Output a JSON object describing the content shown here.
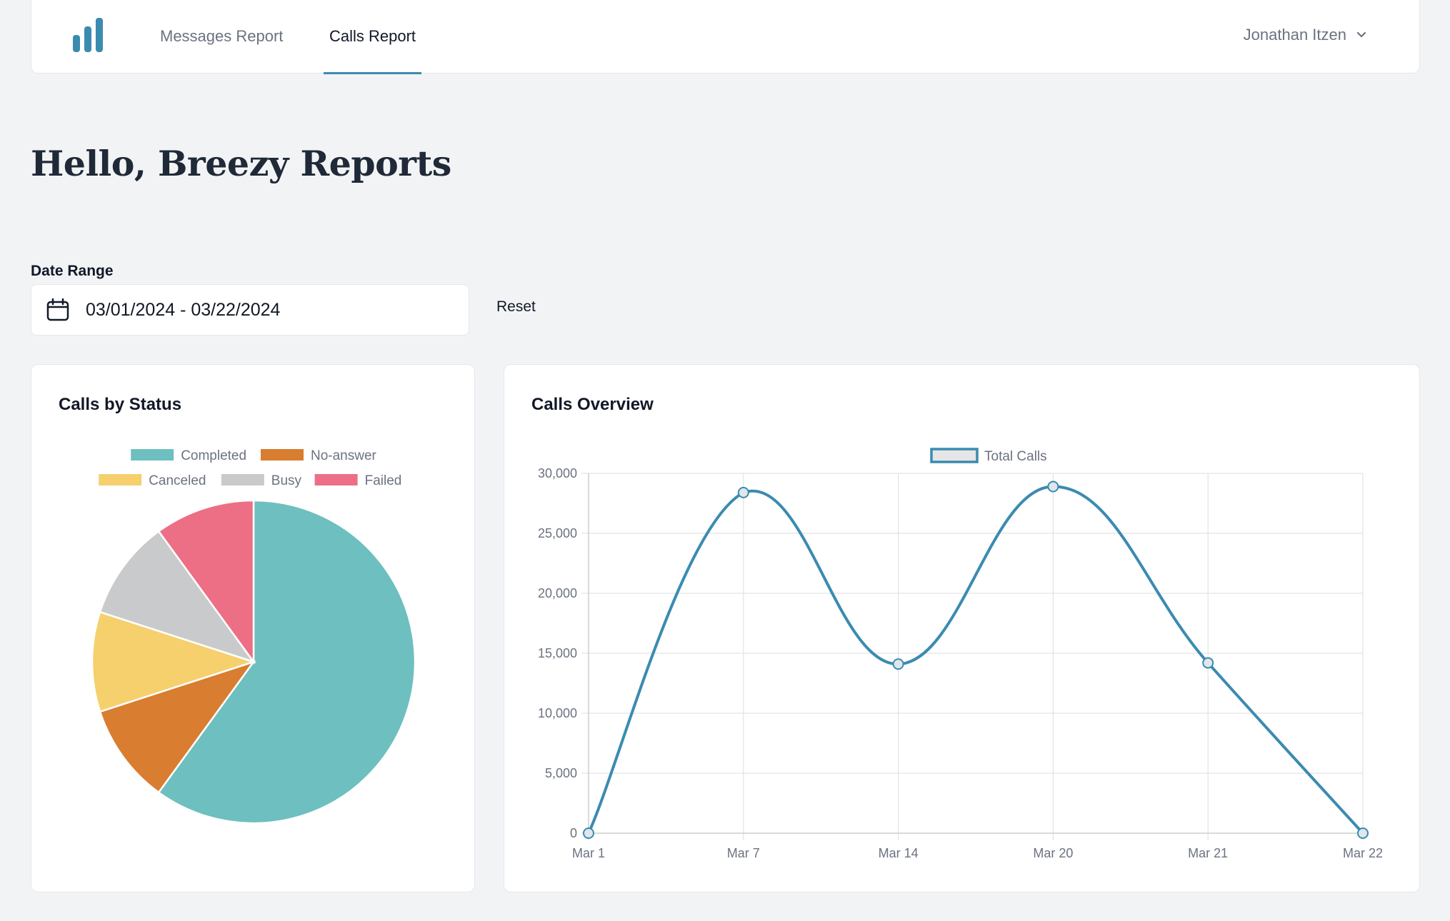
{
  "nav": {
    "tabs": [
      {
        "label": "Messages Report",
        "active": false
      },
      {
        "label": "Calls Report",
        "active": true
      }
    ],
    "user": "Jonathan Itzen"
  },
  "page": {
    "title": "Hello, Breezy Reports"
  },
  "filters": {
    "date_label": "Date Range",
    "date_value": "03/01/2024 - 03/22/2024",
    "reset_label": "Reset"
  },
  "colors": {
    "accent": "#3b8bb0",
    "completed": "#6ebfbf",
    "no_answer": "#d97d30",
    "canceled": "#f6d06d",
    "busy": "#c9cacc",
    "failed": "#ec6f85"
  },
  "chart_data": [
    {
      "type": "pie",
      "title": "Calls by Status",
      "legend": "top",
      "categories": [
        "Completed",
        "No-answer",
        "Canceled",
        "Busy",
        "Failed"
      ],
      "values": [
        60,
        10,
        10,
        10,
        10
      ],
      "colors": [
        "#6ebfbf",
        "#d97d30",
        "#f6d06d",
        "#c9cacc",
        "#ec6f85"
      ]
    },
    {
      "type": "line",
      "title": "Calls Overview",
      "legend": "top",
      "categories": [
        "Mar 1",
        "Mar 7",
        "Mar 14",
        "Mar 20",
        "Mar 21",
        "Mar 22"
      ],
      "series": [
        {
          "name": "Total Calls",
          "values": [
            0,
            28400,
            14100,
            28900,
            14200,
            0
          ]
        }
      ],
      "ylim": [
        0,
        30000
      ],
      "yticks": [
        "0",
        "5,000",
        "10,000",
        "15,000",
        "20,000",
        "25,000",
        "30,000"
      ],
      "grid": true
    }
  ]
}
